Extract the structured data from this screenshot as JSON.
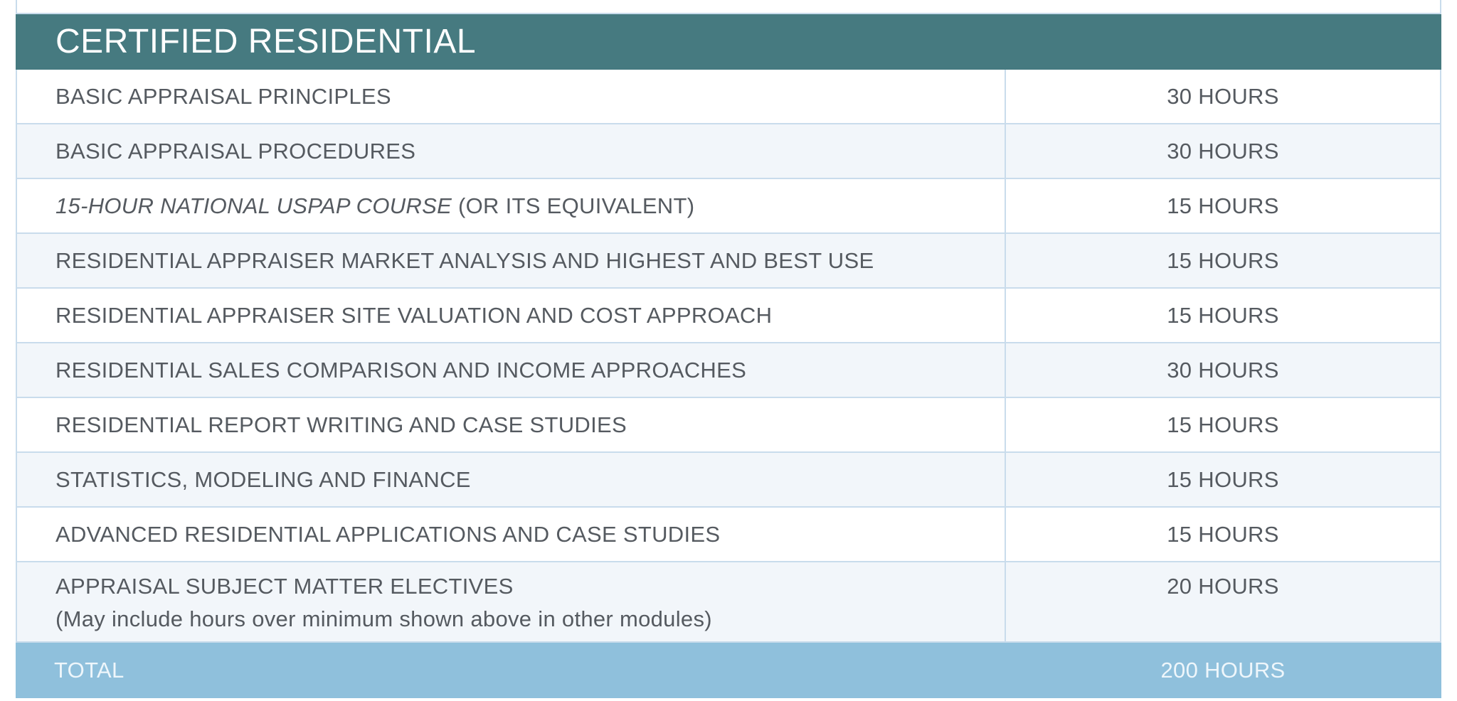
{
  "title": "CERTIFIED RESIDENTIAL",
  "rows": [
    {
      "course": "BASIC APPRAISAL PRINCIPLES",
      "hours": "30 HOURS"
    },
    {
      "course": "BASIC APPRAISAL PROCEDURES",
      "hours": "30 HOURS"
    },
    {
      "course_italic": "15-HOUR NATIONAL USPAP COURSE",
      "course": " (OR ITS EQUIVALENT)",
      "hours": "15 HOURS"
    },
    {
      "course": "RESIDENTIAL APPRAISER MARKET ANALYSIS AND HIGHEST AND BEST USE",
      "hours": "15 HOURS"
    },
    {
      "course": "RESIDENTIAL APPRAISER SITE VALUATION AND COST APPROACH",
      "hours": "15 HOURS"
    },
    {
      "course": "RESIDENTIAL SALES COMPARISON AND INCOME APPROACHES",
      "hours": "30 HOURS"
    },
    {
      "course": "RESIDENTIAL REPORT WRITING AND CASE STUDIES",
      "hours": "15 HOURS"
    },
    {
      "course": "STATISTICS, MODELING AND FINANCE",
      "hours": "15 HOURS"
    },
    {
      "course": "ADVANCED RESIDENTIAL APPLICATIONS AND CASE STUDIES",
      "hours": "15 HOURS"
    },
    {
      "course": "APPRAISAL SUBJECT MATTER ELECTIVES",
      "note": "(May include hours over minimum shown above in other modules)",
      "hours": "20 HOURS"
    }
  ],
  "total": {
    "label": "TOTAL",
    "hours": "200 HOURS"
  },
  "colors": {
    "header": "#467a80",
    "total": "#8fc0dc",
    "border": "#c9dcec",
    "alt_row": "#f2f6fa"
  }
}
